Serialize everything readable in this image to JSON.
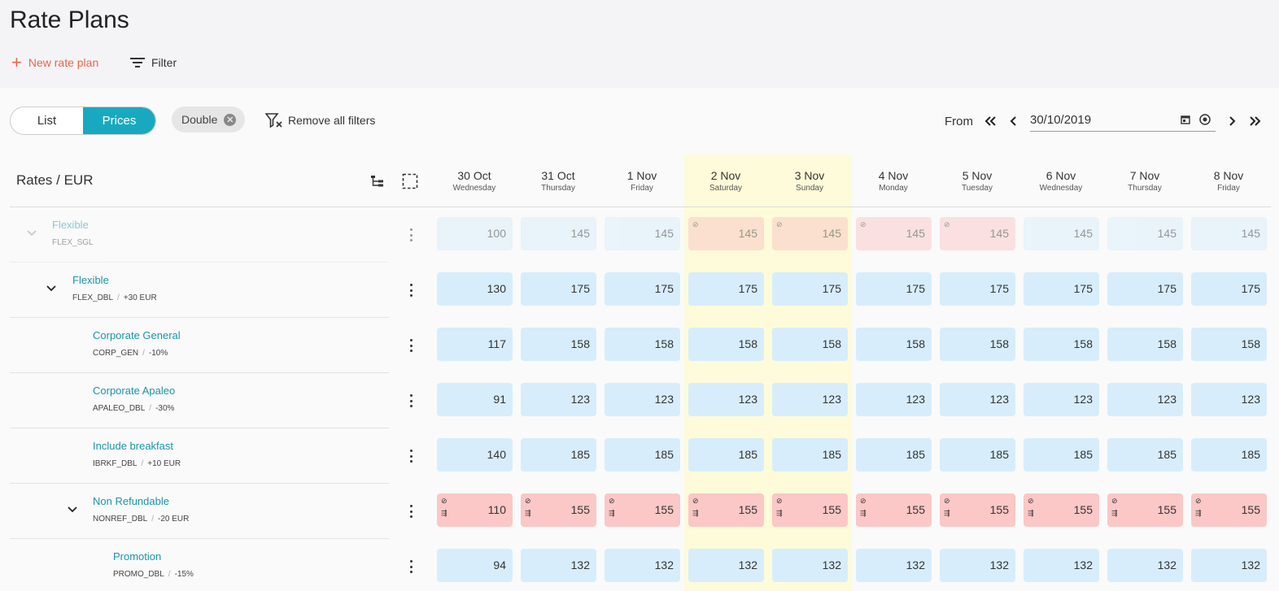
{
  "page": {
    "title": "Rate Plans"
  },
  "toolbar": {
    "new_rate_plan": "New rate plan",
    "filter": "Filter"
  },
  "view_toggle": {
    "list": "List",
    "prices": "Prices",
    "active": "Prices"
  },
  "filters": {
    "chip": "Double",
    "remove_all": "Remove all filters"
  },
  "date_nav": {
    "from_label": "From",
    "date_value": "30/10/2019"
  },
  "grid": {
    "header": "Rates / EUR",
    "dates": [
      {
        "day": "30 Oct",
        "weekday": "Wednesday",
        "weekend": false
      },
      {
        "day": "31 Oct",
        "weekday": "Thursday",
        "weekend": false
      },
      {
        "day": "1 Nov",
        "weekday": "Friday",
        "weekend": false
      },
      {
        "day": "2 Nov",
        "weekday": "Saturday",
        "weekend": true
      },
      {
        "day": "3 Nov",
        "weekday": "Sunday",
        "weekend": true
      },
      {
        "day": "4 Nov",
        "weekday": "Monday",
        "weekend": false
      },
      {
        "day": "5 Nov",
        "weekday": "Tuesday",
        "weekend": false
      },
      {
        "day": "6 Nov",
        "weekday": "Wednesday",
        "weekend": false
      },
      {
        "day": "7 Nov",
        "weekday": "Thursday",
        "weekend": false
      },
      {
        "day": "8 Nov",
        "weekday": "Friday",
        "weekend": false
      }
    ],
    "rows": [
      {
        "name": "Flexible",
        "code": "FLEX_SGL",
        "modifier": "",
        "level": 0,
        "expandable": true,
        "faded": true,
        "prices": [
          "100",
          "145",
          "145",
          "145",
          "145",
          "145",
          "145",
          "145",
          "145",
          "145"
        ],
        "status": [
          "blue",
          "blue",
          "blue",
          "red",
          "red",
          "red",
          "red",
          "blue",
          "blue",
          "blue"
        ]
      },
      {
        "name": "Flexible",
        "code": "FLEX_DBL",
        "modifier": "+30 EUR",
        "level": 1,
        "expandable": true,
        "faded": false,
        "prices": [
          "130",
          "175",
          "175",
          "175",
          "175",
          "175",
          "175",
          "175",
          "175",
          "175"
        ],
        "status": [
          "blue",
          "blue",
          "blue",
          "blue",
          "blue",
          "blue",
          "blue",
          "blue",
          "blue",
          "blue"
        ]
      },
      {
        "name": "Corporate General",
        "code": "CORP_GEN",
        "modifier": "-10%",
        "level": 2,
        "expandable": false,
        "faded": false,
        "prices": [
          "117",
          "158",
          "158",
          "158",
          "158",
          "158",
          "158",
          "158",
          "158",
          "158"
        ],
        "status": [
          "blue",
          "blue",
          "blue",
          "blue",
          "blue",
          "blue",
          "blue",
          "blue",
          "blue",
          "blue"
        ]
      },
      {
        "name": "Corporate Apaleo",
        "code": "APALEO_DBL",
        "modifier": "-30%",
        "level": 2,
        "expandable": false,
        "faded": false,
        "prices": [
          "91",
          "123",
          "123",
          "123",
          "123",
          "123",
          "123",
          "123",
          "123",
          "123"
        ],
        "status": [
          "blue",
          "blue",
          "blue",
          "blue",
          "blue",
          "blue",
          "blue",
          "blue",
          "blue",
          "blue"
        ]
      },
      {
        "name": "Include breakfast",
        "code": "IBRKF_DBL",
        "modifier": "+10 EUR",
        "level": 2,
        "expandable": false,
        "faded": false,
        "prices": [
          "140",
          "185",
          "185",
          "185",
          "185",
          "185",
          "185",
          "185",
          "185",
          "185"
        ],
        "status": [
          "blue",
          "blue",
          "blue",
          "blue",
          "blue",
          "blue",
          "blue",
          "blue",
          "blue",
          "blue"
        ]
      },
      {
        "name": "Non Refundable",
        "code": "NONREF_DBL",
        "modifier": "-20 EUR",
        "level": 2,
        "expandable": true,
        "faded": false,
        "prices": [
          "110",
          "155",
          "155",
          "155",
          "155",
          "155",
          "155",
          "155",
          "155",
          "155"
        ],
        "status": [
          "red",
          "red",
          "red",
          "red",
          "red",
          "red",
          "red",
          "red",
          "red",
          "red"
        ]
      },
      {
        "name": "Promotion",
        "code": "PROMO_DBL",
        "modifier": "-15%",
        "level": 3,
        "expandable": false,
        "faded": false,
        "prices": [
          "94",
          "132",
          "132",
          "132",
          "132",
          "132",
          "132",
          "132",
          "132",
          "132"
        ],
        "status": [
          "blue",
          "blue",
          "blue",
          "blue",
          "blue",
          "blue",
          "blue",
          "blue",
          "blue",
          "blue"
        ]
      }
    ]
  },
  "icons": {
    "restriction_closed": "⊘",
    "restriction_min_stay": "⇶"
  },
  "colors": {
    "accent": "#18a9c1",
    "primary_action": "#e8644c",
    "available": "#d7edfb",
    "restricted": "#fbc7c7",
    "weekend": "#fdfbd9"
  }
}
